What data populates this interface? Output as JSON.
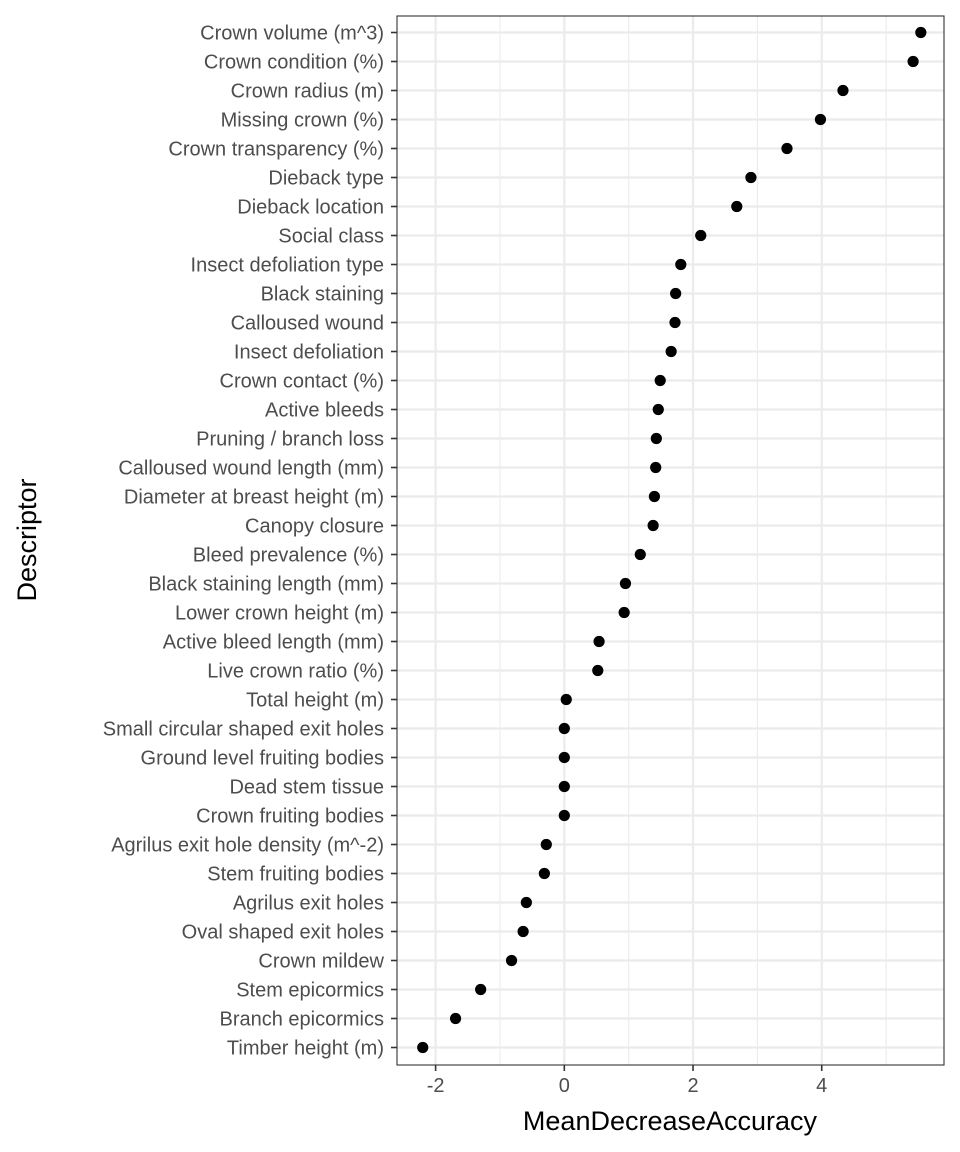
{
  "chart_data": {
    "type": "scatter",
    "xlabel": "MeanDecreaseAccuracy",
    "ylabel": "Descriptor",
    "xlim": [
      -2.6,
      5.9
    ],
    "x_ticks": [
      -2,
      0,
      2,
      4
    ],
    "x_tick_labels": [
      "-2",
      "0",
      "2",
      "4"
    ],
    "grid": true,
    "point_color": "#000000",
    "categories": [
      "Crown volume (m^3)",
      "Crown condition (%)",
      "Crown radius (m)",
      "Missing crown (%)",
      "Crown transparency (%)",
      "Dieback type",
      "Dieback location",
      "Social class",
      "Insect defoliation type",
      "Black staining",
      "Calloused wound",
      "Insect defoliation",
      "Crown contact (%)",
      "Active bleeds",
      "Pruning / branch loss",
      "Calloused wound length (mm)",
      "Diameter at breast height (m)",
      "Canopy closure",
      "Bleed prevalence (%)",
      "Black staining length (mm)",
      "Lower crown height (m)",
      "Active bleed length (mm)",
      "Live crown ratio (%)",
      "Total height (m)",
      "Small circular shaped exit holes",
      "Ground level fruiting bodies",
      "Dead stem tissue",
      "Crown fruiting bodies",
      "Agrilus exit hole density (m^-2)",
      "Stem fruiting bodies",
      "Agrilus exit holes",
      "Oval shaped exit holes",
      "Crown mildew",
      "Stem epicormics",
      "Branch epicormics",
      "Timber height (m)"
    ],
    "values": [
      5.54,
      5.42,
      4.33,
      3.98,
      3.46,
      2.9,
      2.68,
      2.12,
      1.81,
      1.73,
      1.72,
      1.66,
      1.49,
      1.46,
      1.43,
      1.42,
      1.4,
      1.38,
      1.18,
      0.95,
      0.93,
      0.54,
      0.52,
      0.03,
      0.0,
      0.0,
      0.0,
      0.0,
      -0.28,
      -0.31,
      -0.59,
      -0.64,
      -0.82,
      -1.3,
      -1.69,
      -2.2
    ]
  }
}
